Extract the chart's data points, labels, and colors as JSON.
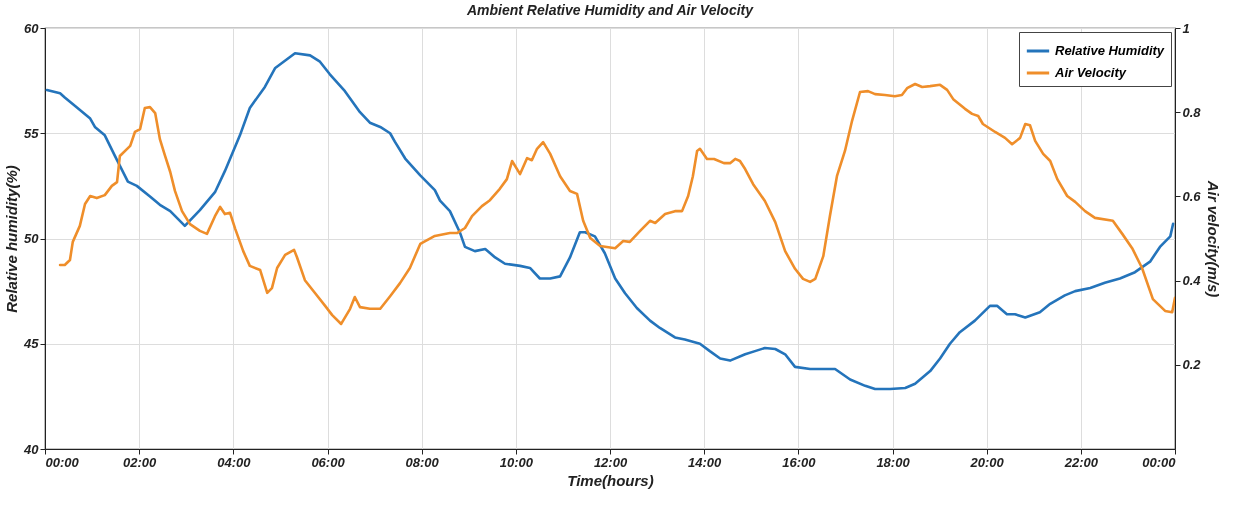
{
  "chart_data": {
    "type": "line",
    "title": "Ambient Relative Humidity and Air Velocity",
    "xlabel": "Time(hours)",
    "ylabel": "Relative humidity(%)",
    "y2label": "Air velocity(m/s)",
    "xlim": [
      0,
      24
    ],
    "xticks": [
      {
        "value": 0,
        "label": "00:00"
      },
      {
        "value": 2,
        "label": "02:00"
      },
      {
        "value": 4,
        "label": "04:00"
      },
      {
        "value": 6,
        "label": "06:00"
      },
      {
        "value": 8,
        "label": "08:00"
      },
      {
        "value": 10,
        "label": "10:00"
      },
      {
        "value": 12,
        "label": "12:00"
      },
      {
        "value": 14,
        "label": "14:00"
      },
      {
        "value": 16,
        "label": "16:00"
      },
      {
        "value": 18,
        "label": "18:00"
      },
      {
        "value": 20,
        "label": "20:00"
      },
      {
        "value": 22,
        "label": "22:00"
      },
      {
        "value": 24,
        "label": "00:00"
      }
    ],
    "ylim": [
      40,
      60
    ],
    "yticks": [
      40,
      45,
      50,
      55,
      60
    ],
    "y2lim": [
      0,
      1
    ],
    "y2ticks": [
      0.2,
      0.4,
      0.6,
      0.8,
      1
    ],
    "grid": true,
    "legend": "top right",
    "line_style": "solid",
    "series": [
      {
        "name": "Relative Humidity",
        "color": "#2474bb",
        "x": [
          0.04,
          0.32,
          0.42,
          0.64,
          0.96,
          1.06,
          1.27,
          1.49,
          1.76,
          1.95,
          2.23,
          2.44,
          2.66,
          2.97,
          3.29,
          3.61,
          3.82,
          4.14,
          4.35,
          4.67,
          4.89,
          5.31,
          5.63,
          5.84,
          6.05,
          6.37,
          6.69,
          6.9,
          7.12,
          7.33,
          7.43,
          7.65,
          7.97,
          8.28,
          8.39,
          8.6,
          8.81,
          8.92,
          9.13,
          9.35,
          9.56,
          9.77,
          10.09,
          10.3,
          10.51,
          10.73,
          10.94,
          11.15,
          11.36,
          11.47,
          11.68,
          11.89,
          12.11,
          12.32,
          12.57,
          12.85,
          13.06,
          13.38,
          13.59,
          13.91,
          14.12,
          14.34,
          14.55,
          14.87,
          15.08,
          15.29,
          15.51,
          15.72,
          15.93,
          16.25,
          16.46,
          16.78,
          17.1,
          17.42,
          17.63,
          17.95,
          18.27,
          18.48,
          18.8,
          19.01,
          19.22,
          19.43,
          19.75,
          20.07,
          20.22,
          20.43,
          20.6,
          20.82,
          21.13,
          21.35,
          21.66,
          21.88,
          22.2,
          22.51,
          22.83,
          23.15,
          23.47,
          23.68,
          23.9,
          23.96
        ],
        "values": [
          57.05,
          56.9,
          56.7,
          56.3,
          55.7,
          55.3,
          54.9,
          53.9,
          52.7,
          52.5,
          52.0,
          51.6,
          51.3,
          50.6,
          51.35,
          52.2,
          53.2,
          54.9,
          56.2,
          57.2,
          58.1,
          58.8,
          58.7,
          58.4,
          57.8,
          57.0,
          56.0,
          55.5,
          55.3,
          55.0,
          54.6,
          53.8,
          53.0,
          52.3,
          51.8,
          51.3,
          50.3,
          49.6,
          49.4,
          49.5,
          49.1,
          48.8,
          48.7,
          48.6,
          48.1,
          48.1,
          48.2,
          49.1,
          50.3,
          50.3,
          50.1,
          49.3,
          48.1,
          47.4,
          46.7,
          46.1,
          45.75,
          45.3,
          45.2,
          45.0,
          44.65,
          44.3,
          44.2,
          44.5,
          44.65,
          44.8,
          44.75,
          44.5,
          43.9,
          43.8,
          43.8,
          43.8,
          43.3,
          43.0,
          42.85,
          42.85,
          42.9,
          43.1,
          43.7,
          44.3,
          45.0,
          45.55,
          46.1,
          46.8,
          46.8,
          46.4,
          46.4,
          46.25,
          46.5,
          46.9,
          47.3,
          47.5,
          47.65,
          47.9,
          48.1,
          48.4,
          48.9,
          49.6,
          50.1,
          50.7
        ]
      },
      {
        "name": "Air Velocity",
        "color": "#ef8e2a",
        "axis": "y2",
        "x": [
          0.32,
          0.42,
          0.53,
          0.59,
          0.74,
          0.85,
          0.96,
          1.1,
          1.27,
          1.42,
          1.53,
          1.59,
          1.81,
          1.91,
          2.02,
          2.12,
          2.23,
          2.34,
          2.44,
          2.55,
          2.66,
          2.76,
          2.91,
          3.08,
          3.29,
          3.44,
          3.61,
          3.72,
          3.82,
          3.93,
          4.04,
          4.21,
          4.35,
          4.57,
          4.72,
          4.82,
          4.93,
          5.1,
          5.29,
          5.35,
          5.52,
          5.73,
          5.95,
          6.1,
          6.29,
          6.48,
          6.58,
          6.69,
          6.9,
          7.12,
          7.33,
          7.54,
          7.75,
          7.97,
          8.28,
          8.6,
          8.75,
          8.92,
          9.07,
          9.28,
          9.45,
          9.66,
          9.81,
          9.92,
          10.09,
          10.24,
          10.34,
          10.45,
          10.58,
          10.73,
          10.94,
          11.15,
          11.3,
          11.43,
          11.58,
          11.79,
          12.11,
          12.28,
          12.42,
          12.64,
          12.85,
          12.96,
          13.17,
          13.38,
          13.53,
          13.66,
          13.76,
          13.85,
          13.91,
          14.06,
          14.21,
          14.42,
          14.55,
          14.66,
          14.76,
          14.87,
          15.04,
          15.29,
          15.51,
          15.72,
          15.93,
          16.1,
          16.25,
          16.36,
          16.53,
          16.67,
          16.82,
          16.99,
          17.14,
          17.31,
          17.48,
          17.63,
          17.84,
          18.05,
          18.2,
          18.31,
          18.48,
          18.63,
          18.8,
          19.01,
          19.16,
          19.29,
          19.54,
          19.69,
          19.82,
          19.92,
          20.18,
          20.39,
          20.54,
          20.71,
          20.82,
          20.92,
          21.03,
          21.2,
          21.35,
          21.5,
          21.71,
          21.88,
          22.09,
          22.3,
          22.68,
          22.88,
          23.09,
          23.3,
          23.53,
          23.79,
          23.94,
          24.0
        ],
        "values": [
          0.437,
          0.437,
          0.449,
          0.492,
          0.53,
          0.582,
          0.601,
          0.596,
          0.603,
          0.625,
          0.634,
          0.696,
          0.72,
          0.753,
          0.76,
          0.81,
          0.812,
          0.798,
          0.736,
          0.696,
          0.658,
          0.613,
          0.565,
          0.534,
          0.518,
          0.511,
          0.553,
          0.575,
          0.558,
          0.561,
          0.523,
          0.47,
          0.435,
          0.425,
          0.371,
          0.382,
          0.43,
          0.461,
          0.473,
          0.456,
          0.401,
          0.371,
          0.34,
          0.318,
          0.297,
          0.333,
          0.361,
          0.337,
          0.333,
          0.333,
          0.363,
          0.394,
          0.43,
          0.487,
          0.506,
          0.513,
          0.513,
          0.525,
          0.553,
          0.577,
          0.591,
          0.618,
          0.641,
          0.684,
          0.653,
          0.691,
          0.686,
          0.713,
          0.729,
          0.701,
          0.648,
          0.613,
          0.606,
          0.542,
          0.501,
          0.482,
          0.477,
          0.494,
          0.492,
          0.518,
          0.542,
          0.537,
          0.558,
          0.565,
          0.565,
          0.601,
          0.648,
          0.708,
          0.713,
          0.689,
          0.689,
          0.679,
          0.679,
          0.689,
          0.684,
          0.665,
          0.629,
          0.589,
          0.539,
          0.47,
          0.428,
          0.404,
          0.397,
          0.404,
          0.458,
          0.553,
          0.648,
          0.708,
          0.779,
          0.848,
          0.85,
          0.843,
          0.841,
          0.838,
          0.841,
          0.857,
          0.867,
          0.86,
          0.862,
          0.865,
          0.853,
          0.831,
          0.808,
          0.796,
          0.791,
          0.772,
          0.753,
          0.739,
          0.724,
          0.739,
          0.772,
          0.769,
          0.732,
          0.701,
          0.684,
          0.641,
          0.601,
          0.587,
          0.565,
          0.549,
          0.542,
          0.511,
          0.477,
          0.43,
          0.356,
          0.328,
          0.325,
          0.359
        ]
      }
    ]
  }
}
